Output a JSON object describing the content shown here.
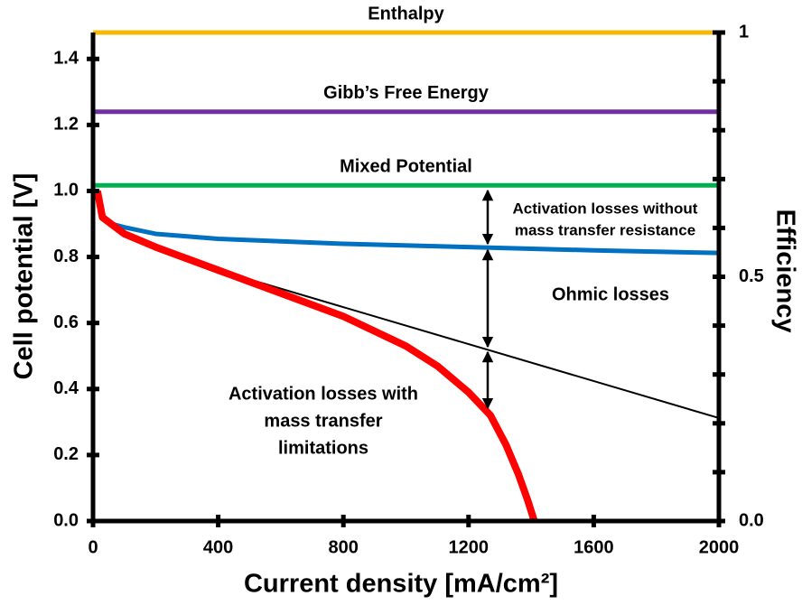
{
  "chart_data": {
    "type": "line",
    "xlabel": "Current density [mA/cm²]",
    "ylabel": "Cell potential [V]",
    "y2label": "Efficiency",
    "xlim": [
      0,
      2000
    ],
    "xticks": [
      0,
      400,
      800,
      1200,
      1600,
      2000
    ],
    "ylim": [
      0,
      1.48
    ],
    "yticks": [
      {
        "value": 0,
        "label": "0.0"
      },
      0.2,
      0.4,
      0.6,
      0.8,
      {
        "value": 1,
        "label": "1.0"
      },
      1.2,
      1.4
    ],
    "y2lim": [
      0,
      1
    ],
    "y2ticks": [
      {
        "value": 0,
        "label": "0.0"
      },
      0.1,
      0.2,
      0.3,
      0.4,
      0.5,
      0.6,
      0.7,
      0.8,
      0.9,
      1
    ],
    "y2tick_labels": [
      {
        "value": 0,
        "label": "0.0"
      },
      0.5,
      1
    ],
    "series": [
      {
        "name": "Enthalpy",
        "color": "#f5b800",
        "width": 5,
        "x": [
          0,
          2000
        ],
        "values": [
          1.48,
          1.48
        ]
      },
      {
        "name": "Gibb’s Free Energy",
        "color": "#7030a0",
        "width": 5,
        "x": [
          0,
          2000
        ],
        "values": [
          1.24,
          1.24
        ]
      },
      {
        "name": "Mixed Potential",
        "color": "#00b050",
        "width": 5,
        "x": [
          0,
          2000
        ],
        "values": [
          1.017,
          1.017
        ]
      },
      {
        "color": "#0070c0",
        "width": 5,
        "x": [
          14,
          30,
          60,
          100,
          200,
          400,
          800,
          1200,
          1600,
          2000
        ],
        "values": [
          1.0,
          0.92,
          0.9,
          0.89,
          0.87,
          0.855,
          0.84,
          0.83,
          0.82,
          0.812
        ]
      },
      {
        "color": "#000000",
        "width": 2,
        "x": [
          400,
          2000
        ],
        "values": [
          0.76,
          0.312
        ]
      },
      {
        "color": "#ff0000",
        "width": 8,
        "x": [
          14,
          30,
          100,
          200,
          400,
          600,
          800,
          1000,
          1100,
          1200,
          1270,
          1320,
          1360,
          1390,
          1410
        ],
        "values": [
          1.0,
          0.92,
          0.87,
          0.83,
          0.76,
          0.69,
          0.62,
          0.53,
          0.47,
          0.39,
          0.32,
          0.23,
          0.14,
          0.06,
          0
        ]
      }
    ],
    "annotations": [
      [
        "Activation losses without",
        "mass transfer resistance"
      ],
      [
        "Ohmic losses"
      ],
      [
        "Activation losses with",
        "mass transfer",
        "limitations"
      ]
    ]
  }
}
